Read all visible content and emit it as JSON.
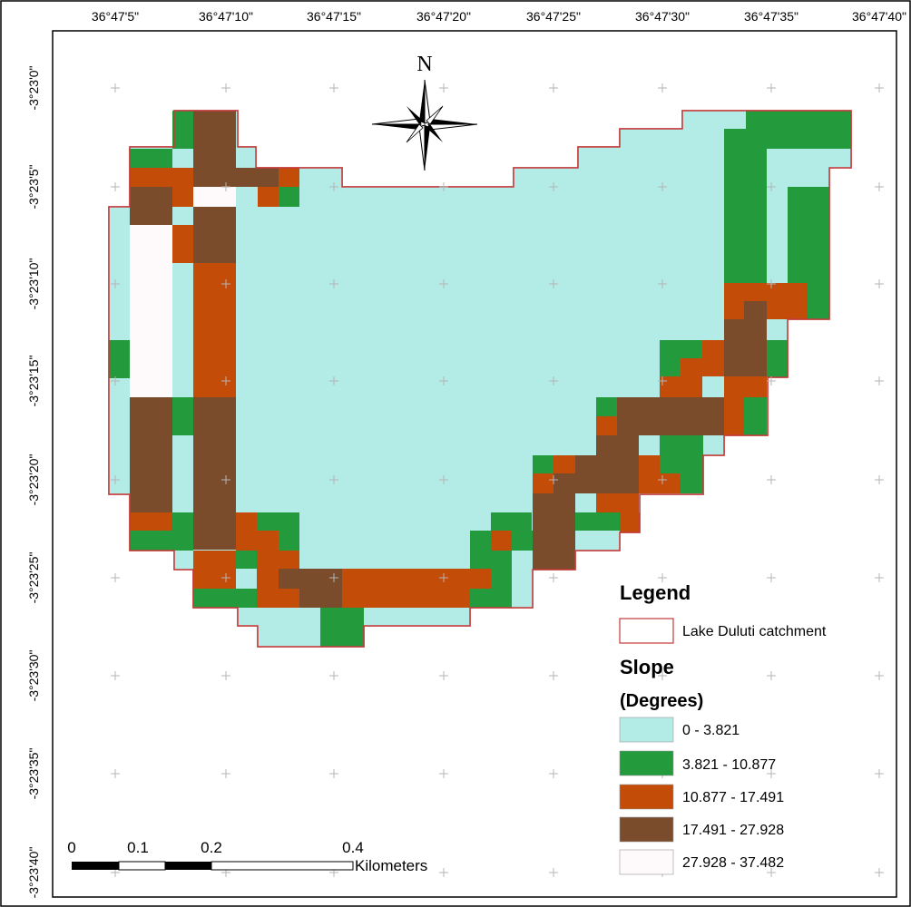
{
  "map": {
    "top_longitude_labels": [
      "36°47'5\"",
      "36°47'10\"",
      "36°47'15\"",
      "36°47'20\"",
      "36°47'25\"",
      "36°47'30\"",
      "36°47'35\"",
      "36°47'40\""
    ],
    "left_latitude_labels": [
      "-3°23'0\"",
      "-3°23'5\"",
      "-3°23'10\"",
      "-3°23'15\"",
      "-3°23'20\"",
      "-3°23'25\"",
      "-3°23'30\"",
      "-3°23'35\"",
      "-3°23'40\""
    ],
    "north_arrow_label": "N",
    "scale_bar": {
      "labels": [
        "0",
        "0.1",
        "0.2",
        "0.4"
      ],
      "units": "Kilometers"
    },
    "colors": {
      "slope_0_3821": "#b3ece6",
      "slope_3821_10877": "#239b3d",
      "slope_10877_17491": "#c24c08",
      "slope_17491_27928": "#7a4c2c",
      "slope_27928_37482": "#fef9fb",
      "catchment_outline": "#c53a3a"
    }
  },
  "legend": {
    "title": "Legend",
    "catchment_label": "Lake Duluti catchment",
    "slope_title": "Slope",
    "slope_units": "(Degrees)",
    "classes": [
      {
        "label": "0 - 3.821",
        "color": "#b3ece6"
      },
      {
        "label": "3.821 - 10.877",
        "color": "#239b3d"
      },
      {
        "label": "10.877 - 17.491",
        "color": "#c24c08"
      },
      {
        "label": "17.491 - 27.928",
        "color": "#7a4c2c"
      },
      {
        "label": "27.928 - 37.482",
        "color": "#fef9fb"
      }
    ]
  }
}
